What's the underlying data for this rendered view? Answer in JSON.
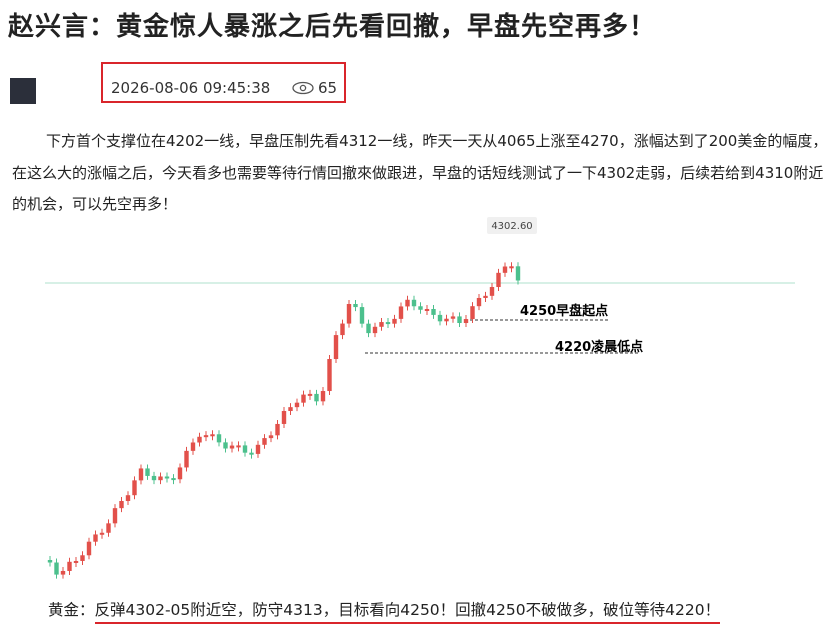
{
  "header": {
    "title": "赵兴言：黄金惊人暴涨之后先看回撤，早盘先空再多！",
    "datetime": "2026-08-06 09:45:38",
    "views": 65
  },
  "body": {
    "paragraph": "下方首个支撑位在4202一线，早盘压制先看4312一线，昨天一天从4065上涨至4270，涨幅达到了200美金的幅度，在这么大的涨幅之后，今天看多也需要等待行情回撤來做跟进，早盘的话短线测试了一下4302走弱，后续若给到4310附近的机会，可以先空再多！"
  },
  "figure": {
    "price_label": "4302.60",
    "level_1": "4250早盘起点",
    "level_2": "4220凌晨低点"
  },
  "footer": {
    "lead": "黄金：",
    "text": "反弹4302-05附近空，防守4313，目标看向4250！回撤4250不破做多，破位等待4220！"
  }
}
